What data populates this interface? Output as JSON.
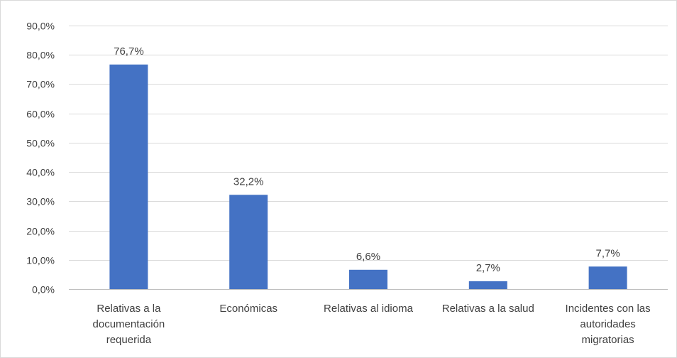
{
  "chart_data": {
    "type": "bar",
    "categories": [
      [
        "Relativas a la",
        "documentación",
        "requerida"
      ],
      [
        "Económicas"
      ],
      [
        "Relativas al idioma"
      ],
      [
        "Relativas a la salud"
      ],
      [
        "Incidentes con las",
        "autoridades",
        "migratorias"
      ]
    ],
    "values": [
      76.7,
      32.2,
      6.6,
      2.7,
      7.7
    ],
    "data_labels": [
      "76,7%",
      "32,2%",
      "6,6%",
      "2,7%",
      "7,7%"
    ],
    "y_ticks": [
      0,
      10,
      20,
      30,
      40,
      50,
      60,
      70,
      80,
      90
    ],
    "y_tick_labels": [
      "0,0%",
      "10,0%",
      "20,0%",
      "30,0%",
      "40,0%",
      "50,0%",
      "60,0%",
      "70,0%",
      "80,0%",
      "90,0%"
    ],
    "ylim": [
      0,
      90
    ],
    "grid": true,
    "bar_color": "#4472c4",
    "title": "",
    "xlabel": "",
    "ylabel": ""
  }
}
